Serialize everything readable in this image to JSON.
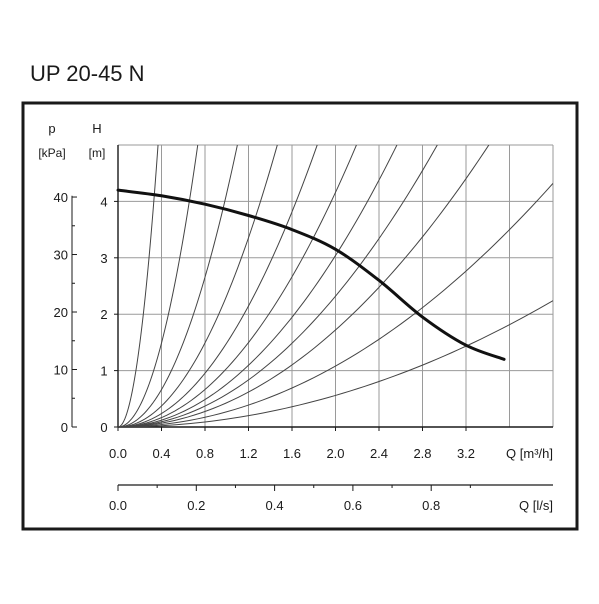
{
  "chart_data": {
    "type": "line",
    "title": "UP 20-45 N",
    "x_axes": [
      {
        "label": "Q [m³/h]",
        "range": [
          0,
          4.0
        ],
        "ticks": [
          "0.0",
          "0.4",
          "0.8",
          "1.2",
          "1.6",
          "2.0",
          "2.4",
          "2.8",
          "3.2"
        ],
        "tick_values": [
          0.0,
          0.4,
          0.8,
          1.2,
          1.6,
          2.0,
          2.4,
          2.8,
          3.2
        ]
      },
      {
        "label": "Q [l/s]",
        "range": [
          0,
          1.111
        ],
        "ticks": [
          "0.0",
          "0.2",
          "0.4",
          "0.6",
          "0.8"
        ],
        "tick_values": [
          0.0,
          0.2,
          0.4,
          0.6,
          0.8
        ]
      }
    ],
    "y_axes": [
      {
        "symbol": "H",
        "unit": "[m]",
        "range": [
          0,
          5.0
        ],
        "ticks": [
          "0",
          "1",
          "2",
          "3",
          "4"
        ],
        "tick_values": [
          0,
          1,
          2,
          3,
          4
        ]
      },
      {
        "symbol": "p",
        "unit": "[kPa]",
        "range": [
          0,
          49.05
        ],
        "ticks": [
          "0",
          "10",
          "20",
          "30",
          "40"
        ],
        "tick_values": [
          0,
          10,
          20,
          30,
          40
        ]
      }
    ],
    "grid": true,
    "series": [
      {
        "role": "pump-curve",
        "x": [
          0.0,
          0.4,
          0.8,
          1.2,
          1.6,
          2.0,
          2.4,
          2.8,
          3.2,
          3.55
        ],
        "y": [
          4.2,
          4.1,
          3.95,
          3.75,
          3.5,
          3.15,
          2.6,
          1.95,
          1.45,
          1.2
        ]
      }
    ],
    "system_curves": {
      "shape": "H = k * Q^2",
      "k": [
        36.9,
        9.3,
        4.15,
        2.33,
        1.49,
        1.04,
        0.76,
        0.58,
        0.43,
        0.27,
        0.14
      ]
    }
  }
}
